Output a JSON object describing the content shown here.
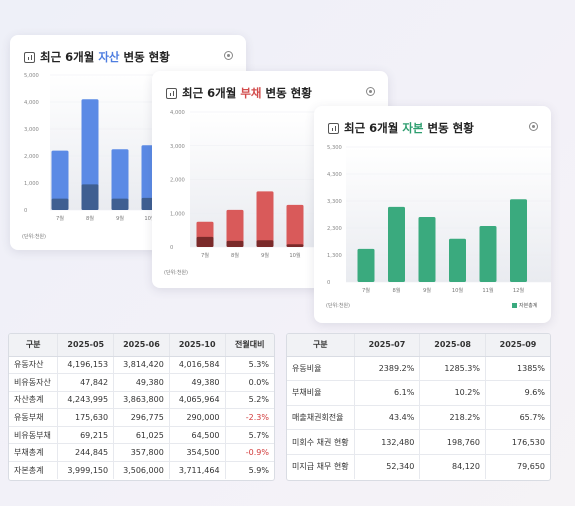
{
  "colors": {
    "asset": "#5b8ae5",
    "asset_dark": "#3f5f91",
    "debt": "#d95a5a",
    "debt_dark": "#7a2a2a",
    "equity": "#3aaa7e"
  },
  "card1": {
    "title_pre": "최근 6개월 ",
    "title_hl": "자산",
    "title_post": " 변동 현황",
    "unit": "(단위:천원)",
    "chart_data": {
      "type": "bar",
      "categories": [
        "7월",
        "8월",
        "9월",
        "10월"
      ],
      "ylim": [
        0,
        5000
      ],
      "yticks": [
        "5,000",
        "4,000",
        "3,000",
        "2,000",
        "1,000",
        "0"
      ],
      "series": [
        {
          "values": [
            2200,
            4100,
            2250,
            2400
          ]
        },
        {
          "values": [
            420,
            950,
            420,
            450
          ]
        }
      ]
    }
  },
  "card2": {
    "title_pre": "최근 6개월 ",
    "title_hl": "부채",
    "title_post": " 변동 현황",
    "unit": "(단위:천원)",
    "chart_data": {
      "type": "bar",
      "categories": [
        "7월",
        "8월",
        "9월",
        "10월"
      ],
      "ylim": [
        0,
        4000
      ],
      "yticks": [
        "4,000",
        "3,000",
        "2,000",
        "1,000",
        "0"
      ],
      "series": [
        {
          "values": [
            750,
            1100,
            1650,
            1250
          ]
        },
        {
          "values": [
            300,
            180,
            200,
            80
          ]
        }
      ]
    }
  },
  "card3": {
    "title_pre": "최근 6개월 ",
    "title_hl": "자본",
    "title_post": " 변동 현황",
    "unit": "(단위:천원)",
    "legend": "자본총계",
    "chart_data": {
      "type": "bar",
      "categories": [
        "7월",
        "8월",
        "9월",
        "10월",
        "11월",
        "12월"
      ],
      "ylim": [
        0,
        5300
      ],
      "yticks": [
        "5,300",
        "4,300",
        "3,300",
        "2,300",
        "1,300",
        "0"
      ],
      "series": [
        {
          "name": "자본총계",
          "values": [
            1300,
            2950,
            2550,
            1700,
            2200,
            3250
          ]
        }
      ]
    }
  },
  "table1": {
    "headers": [
      "구분",
      "2025-05",
      "2025-06",
      "2025-10",
      "전월대비"
    ],
    "rows": [
      [
        "유동자산",
        "4,196,153",
        "3,814,420",
        "4,016,584",
        "5.3%"
      ],
      [
        "비유동자산",
        "47,842",
        "49,380",
        "49,380",
        "0.0%"
      ],
      [
        "자산총계",
        "4,243,995",
        "3,863,800",
        "4,065,964",
        "5.2%"
      ],
      [
        "유동부채",
        "175,630",
        "296,775",
        "290,000",
        "-2.3%"
      ],
      [
        "비유동부채",
        "69,215",
        "61,025",
        "64,500",
        "5.7%"
      ],
      [
        "부채총계",
        "244,845",
        "357,800",
        "354,500",
        "-0.9%"
      ],
      [
        "자본총계",
        "3,999,150",
        "3,506,000",
        "3,711,464",
        "5.9%"
      ]
    ]
  },
  "table2": {
    "headers": [
      "구분",
      "2025-07",
      "2025-08",
      "2025-09"
    ],
    "rows": [
      [
        "유동비율",
        "2389.2%",
        "1285.3%",
        "1385%"
      ],
      [
        "부채비율",
        "6.1%",
        "10.2%",
        "9.6%"
      ],
      [
        "매출채권회전율",
        "43.4%",
        "218.2%",
        "65.7%"
      ],
      [
        "미회수 채권 현황",
        "132,480",
        "198,760",
        "176,530"
      ],
      [
        "미지급 채무 현황",
        "52,340",
        "84,120",
        "79,650"
      ]
    ]
  }
}
